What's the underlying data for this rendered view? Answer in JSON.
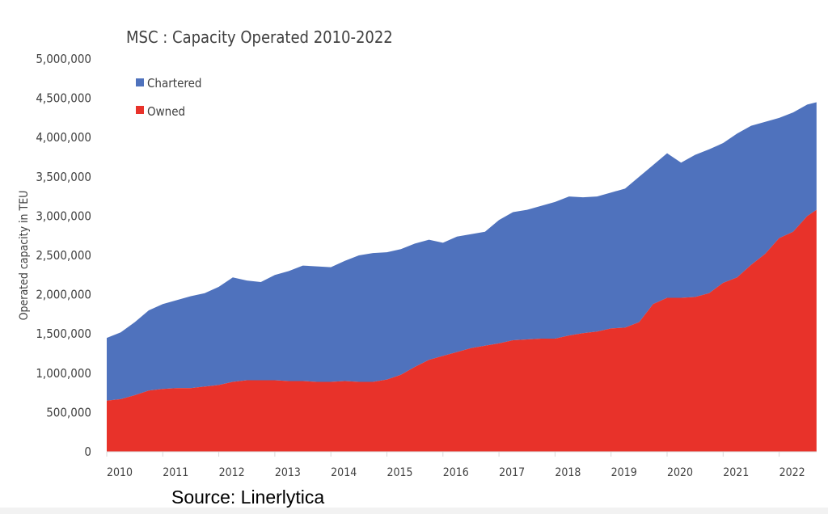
{
  "chart_data": {
    "type": "area",
    "stacked": true,
    "title": "MSC : Capacity Operated 2010-2022",
    "xlabel": "",
    "ylabel": "Operated capacity in TEU",
    "ylim": [
      0,
      5000000
    ],
    "yticks": [
      "0",
      "500,000",
      "1,000,000",
      "1,500,000",
      "2,000,000",
      "2,500,000",
      "3,000,000",
      "3,500,000",
      "4,000,000",
      "4,500,000",
      "5,000,000"
    ],
    "xticks": [
      "2010",
      "2011",
      "2012",
      "2013",
      "2014",
      "2015",
      "2016",
      "2017",
      "2018",
      "2019",
      "2020",
      "2021",
      "2022"
    ],
    "grid": false,
    "legend": "top-left",
    "x": [
      "2010-01",
      "2010-04",
      "2010-07",
      "2010-10",
      "2011-01",
      "2011-04",
      "2011-07",
      "2011-10",
      "2012-01",
      "2012-04",
      "2012-07",
      "2012-10",
      "2013-01",
      "2013-04",
      "2013-07",
      "2013-10",
      "2014-01",
      "2014-04",
      "2014-07",
      "2014-10",
      "2015-01",
      "2015-04",
      "2015-07",
      "2015-10",
      "2016-01",
      "2016-04",
      "2016-07",
      "2016-10",
      "2017-01",
      "2017-04",
      "2017-07",
      "2017-10",
      "2018-01",
      "2018-04",
      "2018-07",
      "2018-10",
      "2019-01",
      "2019-04",
      "2019-07",
      "2019-10",
      "2020-01",
      "2020-04",
      "2020-07",
      "2020-10",
      "2021-01",
      "2021-04",
      "2021-07",
      "2021-10",
      "2022-01",
      "2022-04",
      "2022-07",
      "2022-09"
    ],
    "series": [
      {
        "name": "Owned",
        "color": "#e8322a",
        "values": [
          650000,
          670000,
          720000,
          780000,
          800000,
          810000,
          810000,
          830000,
          850000,
          890000,
          910000,
          910000,
          910000,
          900000,
          900000,
          890000,
          890000,
          900000,
          890000,
          890000,
          920000,
          980000,
          1080000,
          1170000,
          1220000,
          1270000,
          1320000,
          1350000,
          1380000,
          1420000,
          1430000,
          1440000,
          1440000,
          1480000,
          1510000,
          1530000,
          1570000,
          1580000,
          1650000,
          1880000,
          1960000,
          1960000,
          1970000,
          2020000,
          2150000,
          2220000,
          2380000,
          2520000,
          2720000,
          2800000,
          3000000,
          3080000
        ]
      },
      {
        "name": "Chartered",
        "color": "#4f72bd",
        "totals": [
          1450000,
          1520000,
          1650000,
          1800000,
          1880000,
          1930000,
          1980000,
          2020000,
          2100000,
          2220000,
          2180000,
          2160000,
          2250000,
          2300000,
          2370000,
          2360000,
          2350000,
          2430000,
          2500000,
          2530000,
          2540000,
          2580000,
          2650000,
          2700000,
          2660000,
          2740000,
          2770000,
          2800000,
          2950000,
          3050000,
          3080000,
          3130000,
          3180000,
          3250000,
          3240000,
          3250000,
          3300000,
          3350000,
          3500000,
          3650000,
          3800000,
          3680000,
          3780000,
          3850000,
          3930000,
          4050000,
          4150000,
          4200000,
          4250000,
          4320000,
          4420000,
          4450000
        ]
      }
    ],
    "source": "Source: Linerlytica"
  }
}
